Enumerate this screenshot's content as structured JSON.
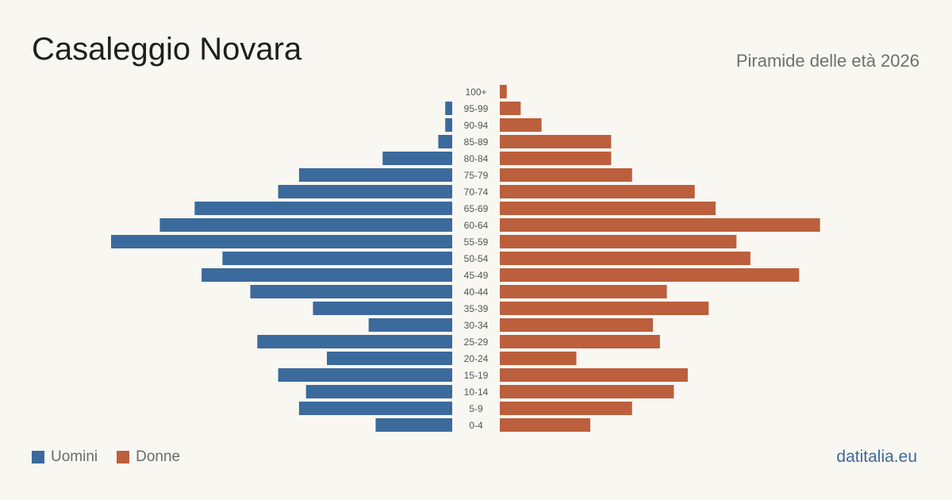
{
  "header": {
    "title": "Casaleggio Novara",
    "subtitle": "Piramide delle età 2026"
  },
  "legend": {
    "men_label": "Uomini",
    "women_label": "Donne"
  },
  "brand": "datitalia.eu",
  "colors": {
    "men": "#3b6a9c",
    "women": "#bc5f3c",
    "background": "#f9f7f2"
  },
  "chart_data": {
    "type": "bar",
    "orientation": "horizontal-population-pyramid",
    "categories": [
      "100+",
      "95-99",
      "90-94",
      "85-89",
      "80-84",
      "75-79",
      "70-74",
      "65-69",
      "60-64",
      "55-59",
      "50-54",
      "45-49",
      "40-44",
      "35-39",
      "30-34",
      "25-29",
      "20-24",
      "15-19",
      "10-14",
      "5-9",
      "0-4"
    ],
    "series": [
      {
        "name": "Uomini",
        "values": [
          0,
          1,
          1,
          2,
          10,
          22,
          25,
          37,
          42,
          49,
          33,
          36,
          29,
          20,
          12,
          28,
          18,
          25,
          21,
          22,
          11
        ]
      },
      {
        "name": "Donne",
        "values": [
          1,
          3,
          6,
          16,
          16,
          19,
          28,
          31,
          46,
          34,
          36,
          43,
          24,
          30,
          22,
          23,
          11,
          27,
          25,
          19,
          13
        ]
      }
    ],
    "grid": false,
    "legend_position": "bottom-left"
  }
}
